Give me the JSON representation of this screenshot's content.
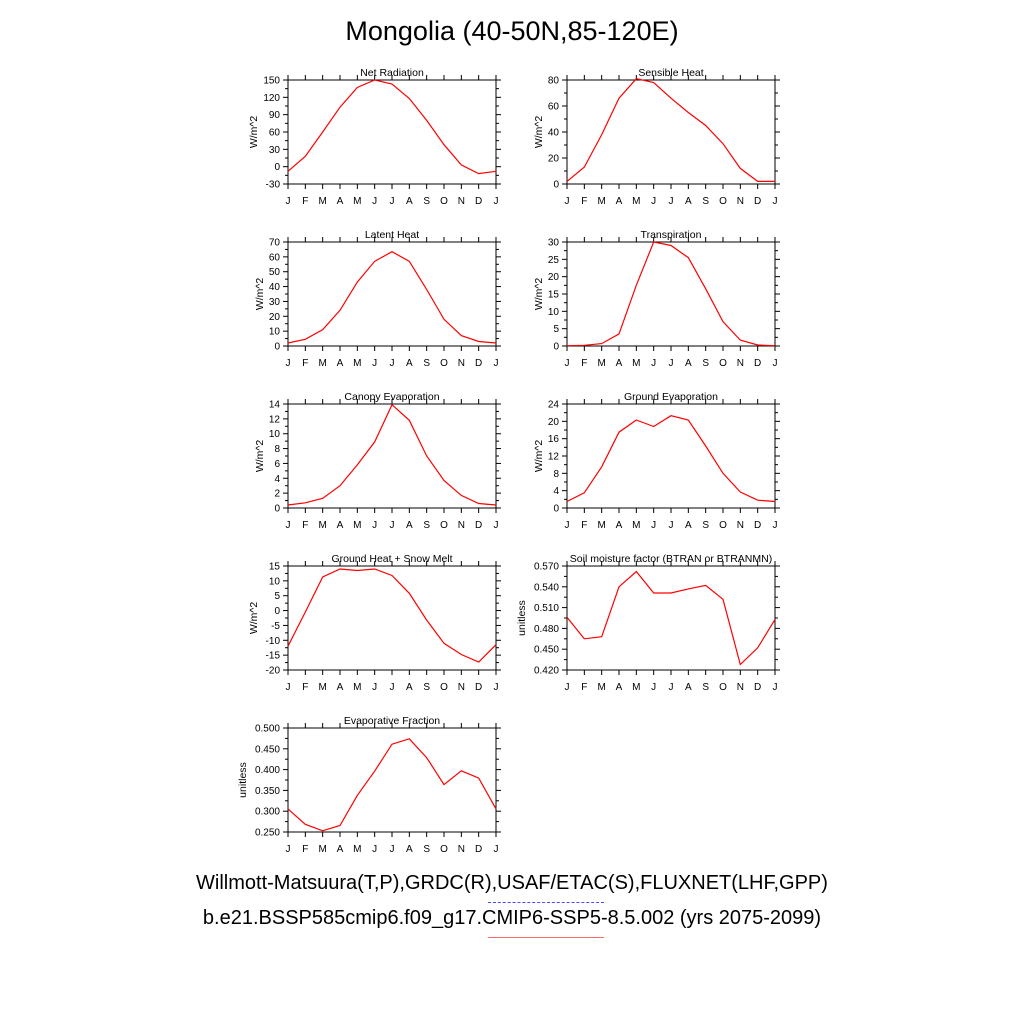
{
  "main_title": "Mongolia (40-50N,85-120E)",
  "legend": {
    "observed": "Willmott-Matsuura(T,P),GRDC(R),USAF/ETAC(S),FLUXNET(LHF,GPP)",
    "model": "b.e21.BSSP585cmip6.f09_g17.CMIP6-SSP5-8.5.002 (yrs 2075-2099)",
    "observed_color": "#4a4aff",
    "model_color": "#ff0000"
  },
  "chart_data": [
    {
      "type": "line",
      "title": "Net Radiation",
      "ylabel": "W/m^2",
      "ylim": [
        -30,
        150
      ],
      "yticks": [
        "-30",
        "0",
        "30",
        "60",
        "90",
        "120",
        "150"
      ],
      "categories": [
        "J",
        "F",
        "M",
        "A",
        "M",
        "J",
        "J",
        "A",
        "S",
        "O",
        "N",
        "D",
        "J"
      ],
      "values": [
        -8,
        18,
        60,
        103,
        137,
        150,
        143,
        118,
        80,
        38,
        3,
        -12,
        -8
      ]
    },
    {
      "type": "line",
      "title": "Sensible Heat",
      "ylabel": "W/m^2",
      "ylim": [
        0,
        80
      ],
      "yticks": [
        "0",
        "20",
        "40",
        "60",
        "80"
      ],
      "categories": [
        "J",
        "F",
        "M",
        "A",
        "M",
        "J",
        "J",
        "A",
        "S",
        "O",
        "N",
        "D",
        "J"
      ],
      "values": [
        2,
        13,
        38,
        66,
        81,
        78,
        66,
        55,
        45,
        31,
        12,
        2,
        2
      ]
    },
    {
      "type": "line",
      "title": "Latent Heat",
      "ylabel": "W/m^2",
      "ylim": [
        0,
        70
      ],
      "yticks": [
        "0",
        "10",
        "20",
        "30",
        "40",
        "50",
        "60",
        "70"
      ],
      "categories": [
        "J",
        "F",
        "M",
        "A",
        "M",
        "J",
        "J",
        "A",
        "S",
        "O",
        "N",
        "D",
        "J"
      ],
      "values": [
        2,
        4.5,
        11,
        24,
        43,
        57,
        63.5,
        57,
        38,
        18,
        7,
        3,
        2
      ]
    },
    {
      "type": "line",
      "title": "Transpiration",
      "ylabel": "W/m^2",
      "ylim": [
        0,
        30
      ],
      "yticks": [
        "0",
        "5",
        "10",
        "15",
        "20",
        "25",
        "30"
      ],
      "categories": [
        "J",
        "F",
        "M",
        "A",
        "M",
        "J",
        "J",
        "A",
        "S",
        "O",
        "N",
        "D",
        "J"
      ],
      "values": [
        0.1,
        0.2,
        0.7,
        3.5,
        17.5,
        30,
        29,
        25.5,
        16.5,
        7,
        1.7,
        0.3,
        0.1
      ]
    },
    {
      "type": "line",
      "title": "Canopy Evaporation",
      "ylabel": "W/m^2",
      "ylim": [
        0,
        14
      ],
      "yticks": [
        "0",
        "2",
        "4",
        "6",
        "8",
        "10",
        "12",
        "14"
      ],
      "categories": [
        "J",
        "F",
        "M",
        "A",
        "M",
        "J",
        "J",
        "A",
        "S",
        "O",
        "N",
        "D",
        "J"
      ],
      "values": [
        0.4,
        0.7,
        1.3,
        3,
        5.8,
        8.9,
        13.9,
        11.8,
        7,
        3.7,
        1.7,
        0.6,
        0.4
      ]
    },
    {
      "type": "line",
      "title": "Ground Evaporation",
      "ylabel": "W/m^2",
      "ylim": [
        0,
        24
      ],
      "yticks": [
        "0",
        "4",
        "8",
        "12",
        "16",
        "20",
        "24"
      ],
      "categories": [
        "J",
        "F",
        "M",
        "A",
        "M",
        "J",
        "J",
        "A",
        "S",
        "O",
        "N",
        "D",
        "J"
      ],
      "values": [
        1.5,
        3.5,
        9.5,
        17.5,
        20.3,
        18.8,
        21.3,
        20.3,
        14.3,
        8,
        3.7,
        1.8,
        1.5
      ]
    },
    {
      "type": "line",
      "title": "Ground Heat + Snow Melt",
      "ylabel": "W/m^2",
      "ylim": [
        -20,
        15
      ],
      "yticks": [
        "-20",
        "-15",
        "-10",
        "-5",
        "0",
        "5",
        "10",
        "15"
      ],
      "categories": [
        "J",
        "F",
        "M",
        "A",
        "M",
        "J",
        "J",
        "A",
        "S",
        "O",
        "N",
        "D",
        "J"
      ],
      "values": [
        -12,
        -0.5,
        11.3,
        14,
        13.5,
        14,
        11.8,
        5.8,
        -3.2,
        -11,
        -14.8,
        -17.3,
        -11.5
      ]
    },
    {
      "type": "line",
      "title": "Soil moisture factor (BTRAN or BTRANMN)",
      "ylabel": "unitless",
      "ylim": [
        0.42,
        0.57
      ],
      "yticks": [
        "0.420",
        "0.450",
        "0.480",
        "0.510",
        "0.540",
        "0.570"
      ],
      "categories": [
        "J",
        "F",
        "M",
        "A",
        "M",
        "J",
        "J",
        "A",
        "S",
        "O",
        "N",
        "D",
        "J"
      ],
      "values": [
        0.496,
        0.465,
        0.468,
        0.54,
        0.562,
        0.531,
        0.531,
        0.537,
        0.542,
        0.522,
        0.428,
        0.452,
        0.493
      ]
    },
    {
      "type": "line",
      "title": "Evaporative Fraction",
      "ylabel": "unitless",
      "ylim": [
        0.25,
        0.52
      ],
      "yticks": [
        "0.250",
        "0.300",
        "0.350",
        "0.400",
        "0.450",
        "0.500"
      ],
      "categories": [
        "J",
        "F",
        "M",
        "A",
        "M",
        "J",
        "J",
        "A",
        "S",
        "O",
        "N",
        "D",
        "J"
      ],
      "values": [
        0.31,
        0.27,
        0.253,
        0.267,
        0.345,
        0.408,
        0.478,
        0.492,
        0.443,
        0.373,
        0.409,
        0.39,
        0.31
      ]
    }
  ]
}
